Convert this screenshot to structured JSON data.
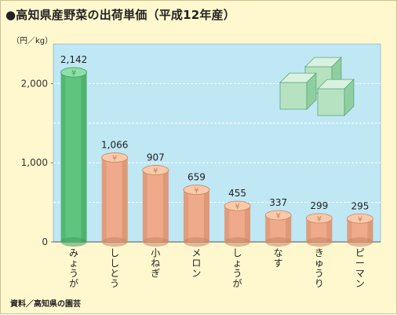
{
  "title": "●高知県産野菜の出荷単価（平成12年産）",
  "unit": "（円／kg）",
  "source": "資料／高知県の園芸",
  "colors": {
    "plot_bg": "#bfe7f4",
    "highlight_bar": "#5ec47e",
    "bar": "#eeaa8a"
  },
  "chart_data": {
    "type": "bar",
    "categories": [
      "みょうが",
      "ししとう",
      "小ねぎ",
      "メロン",
      "しょうが",
      "なす",
      "きゅうり",
      "ピーマン"
    ],
    "values": [
      2142,
      1066,
      907,
      659,
      455,
      337,
      299,
      295
    ],
    "value_labels": [
      "2,142",
      "1,066",
      "907",
      "659",
      "455",
      "337",
      "299",
      "295"
    ],
    "ylim": [
      0,
      2500
    ],
    "yticks": [
      0,
      1000,
      2000
    ],
    "ytick_labels": [
      "0",
      "1,000",
      "2,000"
    ],
    "ylabel": "（円／kg）",
    "highlight_index": 0,
    "grid": "horizontal dashed",
    "legend": "none",
    "decoration": "cube-stack-icon"
  }
}
